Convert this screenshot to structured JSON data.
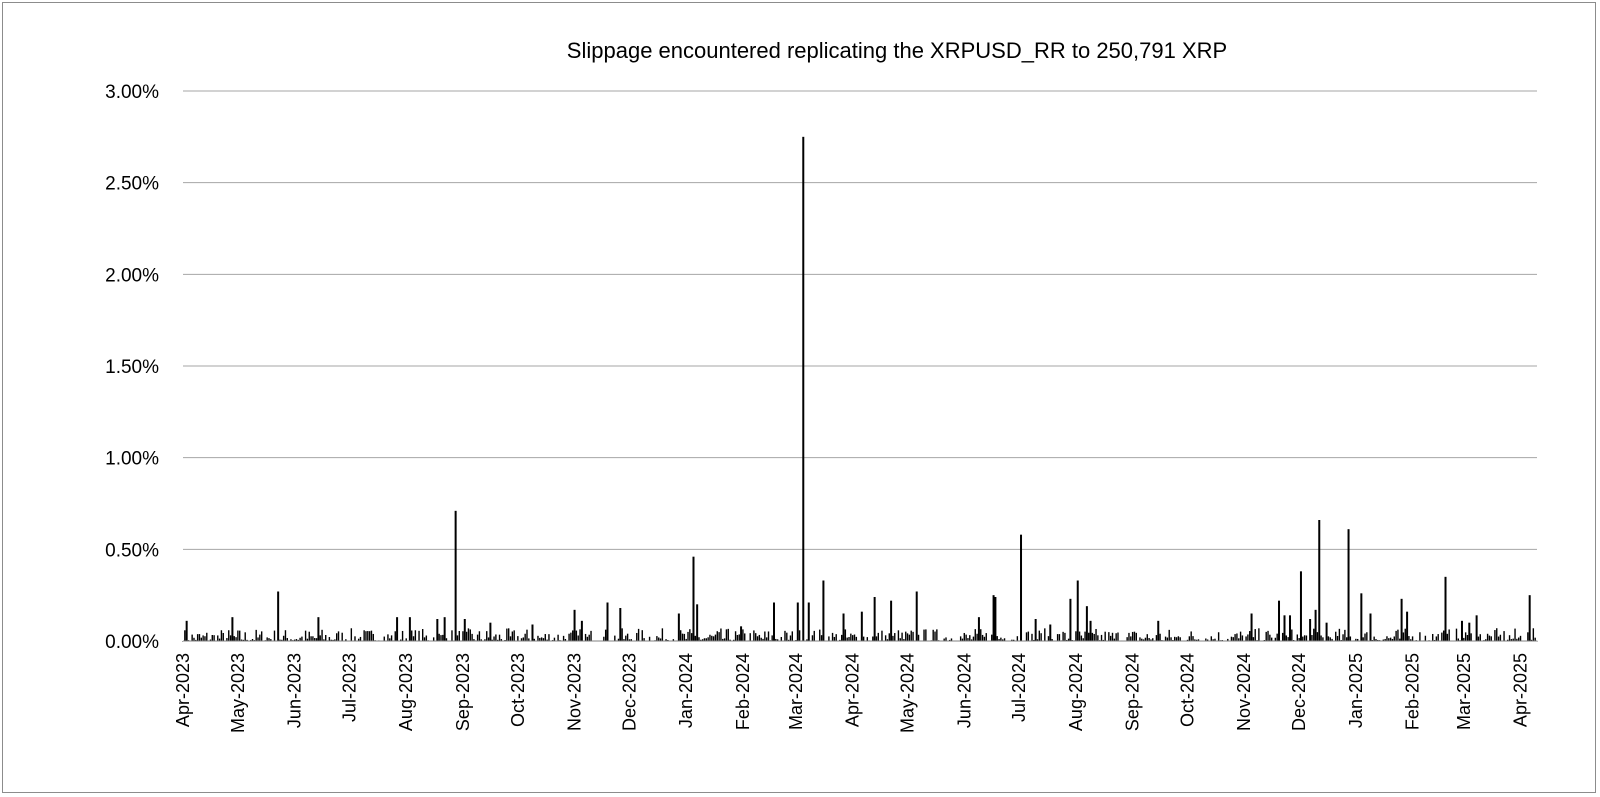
{
  "chart_data": {
    "type": "bar",
    "title": "Slippage encountered replicating the XRPUSD_RR to 250,791 XRP",
    "xlabel": "",
    "ylabel": "",
    "ylim": [
      0,
      3.0
    ],
    "y_unit": "%",
    "y_ticks": [
      "0.00%",
      "0.50%",
      "1.00%",
      "1.50%",
      "2.00%",
      "2.50%",
      "3.00%"
    ],
    "grid": true,
    "legend": "none",
    "color": "#000000",
    "x_ticks": [
      "Apr-2023",
      "May-2023",
      "Jun-2023",
      "Jul-2023",
      "Aug-2023",
      "Sep-2023",
      "Oct-2023",
      "Nov-2023",
      "Dec-2023",
      "Jan-2024",
      "Feb-2024",
      "Mar-2024",
      "Apr-2024",
      "May-2024",
      "Jun-2024",
      "Jul-2024",
      "Aug-2024",
      "Sep-2024",
      "Oct-2024",
      "Nov-2024",
      "Dec-2024",
      "Jan-2025",
      "Feb-2025",
      "Mar-2025",
      "Apr-2025"
    ],
    "x_start": "2023-04-01",
    "x_end": "2025-04-10",
    "notable_points": [
      {
        "date": "2023-04-03",
        "value": 0.11
      },
      {
        "date": "2023-04-28",
        "value": 0.13
      },
      {
        "date": "2023-05-23",
        "value": 0.27
      },
      {
        "date": "2023-06-14",
        "value": 0.13
      },
      {
        "date": "2023-07-27",
        "value": 0.13
      },
      {
        "date": "2023-08-03",
        "value": 0.13
      },
      {
        "date": "2023-08-18",
        "value": 0.12
      },
      {
        "date": "2023-08-22",
        "value": 0.13
      },
      {
        "date": "2023-08-28",
        "value": 0.71
      },
      {
        "date": "2023-09-02",
        "value": 0.12
      },
      {
        "date": "2023-09-16",
        "value": 0.1
      },
      {
        "date": "2023-10-09",
        "value": 0.09
      },
      {
        "date": "2023-11-01",
        "value": 0.17
      },
      {
        "date": "2023-11-05",
        "value": 0.11
      },
      {
        "date": "2023-11-19",
        "value": 0.21
      },
      {
        "date": "2023-11-26",
        "value": 0.18
      },
      {
        "date": "2023-12-28",
        "value": 0.15
      },
      {
        "date": "2024-01-05",
        "value": 0.46
      },
      {
        "date": "2024-01-07",
        "value": 0.2
      },
      {
        "date": "2024-01-31",
        "value": 0.08
      },
      {
        "date": "2024-02-18",
        "value": 0.21
      },
      {
        "date": "2024-03-02",
        "value": 0.21
      },
      {
        "date": "2024-03-05",
        "value": 2.75
      },
      {
        "date": "2024-03-08",
        "value": 0.21
      },
      {
        "date": "2024-03-16",
        "value": 0.33
      },
      {
        "date": "2024-03-27",
        "value": 0.15
      },
      {
        "date": "2024-04-06",
        "value": 0.16
      },
      {
        "date": "2024-04-13",
        "value": 0.24
      },
      {
        "date": "2024-04-22",
        "value": 0.22
      },
      {
        "date": "2024-05-06",
        "value": 0.27
      },
      {
        "date": "2024-06-09",
        "value": 0.13
      },
      {
        "date": "2024-06-17",
        "value": 0.25
      },
      {
        "date": "2024-06-18",
        "value": 0.24
      },
      {
        "date": "2024-07-02",
        "value": 0.58
      },
      {
        "date": "2024-07-10",
        "value": 0.12
      },
      {
        "date": "2024-07-18",
        "value": 0.09
      },
      {
        "date": "2024-07-29",
        "value": 0.23
      },
      {
        "date": "2024-08-02",
        "value": 0.33
      },
      {
        "date": "2024-08-07",
        "value": 0.19
      },
      {
        "date": "2024-08-09",
        "value": 0.11
      },
      {
        "date": "2024-09-15",
        "value": 0.11
      },
      {
        "date": "2024-11-05",
        "value": 0.15
      },
      {
        "date": "2024-11-20",
        "value": 0.22
      },
      {
        "date": "2024-11-23",
        "value": 0.14
      },
      {
        "date": "2024-11-26",
        "value": 0.14
      },
      {
        "date": "2024-12-02",
        "value": 0.38
      },
      {
        "date": "2024-12-07",
        "value": 0.12
      },
      {
        "date": "2024-12-10",
        "value": 0.17
      },
      {
        "date": "2024-12-12",
        "value": 0.66
      },
      {
        "date": "2024-12-16",
        "value": 0.1
      },
      {
        "date": "2024-12-28",
        "value": 0.61
      },
      {
        "date": "2025-01-04",
        "value": 0.26
      },
      {
        "date": "2025-01-09",
        "value": 0.15
      },
      {
        "date": "2025-01-26",
        "value": 0.23
      },
      {
        "date": "2025-01-29",
        "value": 0.16
      },
      {
        "date": "2025-02-19",
        "value": 0.35
      },
      {
        "date": "2025-02-28",
        "value": 0.11
      },
      {
        "date": "2025-03-04",
        "value": 0.1
      },
      {
        "date": "2025-03-08",
        "value": 0.14
      },
      {
        "date": "2025-04-06",
        "value": 0.25
      }
    ],
    "baseline_range": [
      0.0,
      0.07
    ]
  }
}
